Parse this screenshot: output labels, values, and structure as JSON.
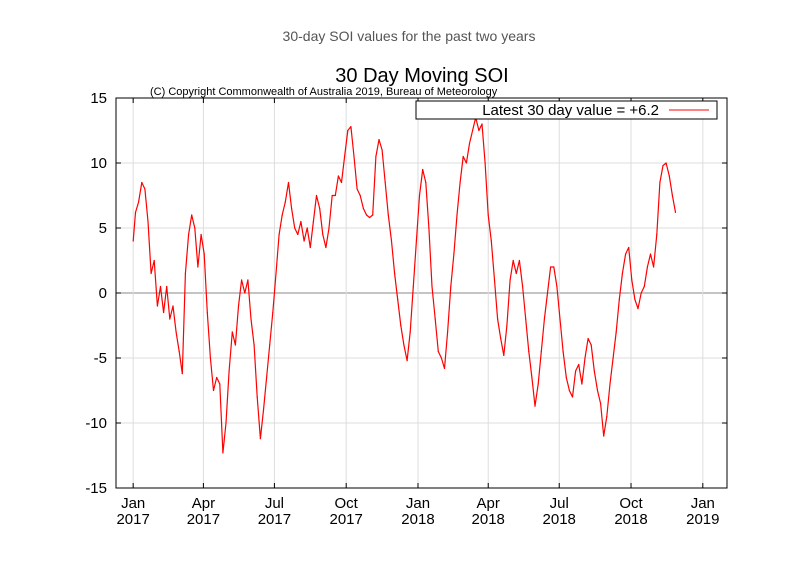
{
  "page": {
    "caption": "30-day SOI values for the past two years"
  },
  "chart_data": {
    "type": "line",
    "title": "30 Day Moving SOI",
    "subtitle": "(C) Copyright Commonwealth of Australia 2019, Bureau of Meteorology",
    "legend": {
      "label": "Latest 30 day value = +6.2",
      "placement": "top-right"
    },
    "xlabel": "",
    "ylabel": "",
    "ylim": [
      -15,
      15
    ],
    "yticks": [
      15,
      10,
      5,
      0,
      -5,
      -10,
      -15
    ],
    "xticks": [
      {
        "date": "2017-01-01",
        "month": "Jan",
        "year": "2017"
      },
      {
        "date": "2017-04-01",
        "month": "Apr",
        "year": "2017"
      },
      {
        "date": "2017-07-01",
        "month": "Jul",
        "year": "2017"
      },
      {
        "date": "2017-10-01",
        "month": "Oct",
        "year": "2017"
      },
      {
        "date": "2018-01-01",
        "month": "Jan",
        "year": "2018"
      },
      {
        "date": "2018-04-01",
        "month": "Apr",
        "year": "2018"
      },
      {
        "date": "2018-07-01",
        "month": "Jul",
        "year": "2018"
      },
      {
        "date": "2018-10-01",
        "month": "Oct",
        "year": "2018"
      },
      {
        "date": "2019-01-01",
        "month": "Jan",
        "year": "2019"
      }
    ],
    "xlim": [
      "2016-12-10",
      "2019-02-01"
    ],
    "grid": true,
    "zero_line": true,
    "series": [
      {
        "name": "Latest 30 day value = +6.2",
        "color": "#ff0000",
        "points": [
          [
            "2017-01-01",
            4.0
          ],
          [
            "2017-01-04",
            6.2
          ],
          [
            "2017-01-08",
            7.0
          ],
          [
            "2017-01-12",
            8.5
          ],
          [
            "2017-01-16",
            8.0
          ],
          [
            "2017-01-20",
            5.5
          ],
          [
            "2017-01-24",
            1.5
          ],
          [
            "2017-01-28",
            2.5
          ],
          [
            "2017-02-01",
            -1.0
          ],
          [
            "2017-02-05",
            0.5
          ],
          [
            "2017-02-09",
            -1.5
          ],
          [
            "2017-02-13",
            0.5
          ],
          [
            "2017-02-17",
            -2.0
          ],
          [
            "2017-02-21",
            -1.0
          ],
          [
            "2017-02-25",
            -3.0
          ],
          [
            "2017-03-01",
            -4.5
          ],
          [
            "2017-03-05",
            -6.2
          ],
          [
            "2017-03-09",
            1.5
          ],
          [
            "2017-03-13",
            4.5
          ],
          [
            "2017-03-17",
            6.0
          ],
          [
            "2017-03-21",
            5.0
          ],
          [
            "2017-03-25",
            2.0
          ],
          [
            "2017-03-29",
            4.5
          ],
          [
            "2017-04-02",
            3.0
          ],
          [
            "2017-04-06",
            -1.5
          ],
          [
            "2017-04-10",
            -5.0
          ],
          [
            "2017-04-14",
            -7.5
          ],
          [
            "2017-04-18",
            -6.5
          ],
          [
            "2017-04-22",
            -7.0
          ],
          [
            "2017-04-26",
            -12.3
          ],
          [
            "2017-04-30",
            -10.0
          ],
          [
            "2017-05-04",
            -6.0
          ],
          [
            "2017-05-08",
            -3.0
          ],
          [
            "2017-05-12",
            -4.0
          ],
          [
            "2017-05-16",
            -1.0
          ],
          [
            "2017-05-20",
            1.0
          ],
          [
            "2017-05-24",
            0.0
          ],
          [
            "2017-05-28",
            1.0
          ],
          [
            "2017-06-01",
            -2.0
          ],
          [
            "2017-06-05",
            -4.0
          ],
          [
            "2017-06-09",
            -8.0
          ],
          [
            "2017-06-13",
            -11.2
          ],
          [
            "2017-06-17",
            -9.0
          ],
          [
            "2017-06-21",
            -6.5
          ],
          [
            "2017-06-25",
            -4.0
          ],
          [
            "2017-06-29",
            -1.5
          ],
          [
            "2017-07-03",
            1.5
          ],
          [
            "2017-07-07",
            4.5
          ],
          [
            "2017-07-11",
            6.0
          ],
          [
            "2017-07-15",
            7.0
          ],
          [
            "2017-07-19",
            8.5
          ],
          [
            "2017-07-23",
            6.5
          ],
          [
            "2017-07-27",
            5.0
          ],
          [
            "2017-07-31",
            4.5
          ],
          [
            "2017-08-04",
            5.5
          ],
          [
            "2017-08-08",
            4.0
          ],
          [
            "2017-08-12",
            5.0
          ],
          [
            "2017-08-16",
            3.5
          ],
          [
            "2017-08-20",
            5.5
          ],
          [
            "2017-08-24",
            7.5
          ],
          [
            "2017-08-28",
            6.5
          ],
          [
            "2017-09-01",
            4.5
          ],
          [
            "2017-09-05",
            3.5
          ],
          [
            "2017-09-09",
            5.0
          ],
          [
            "2017-09-13",
            7.5
          ],
          [
            "2017-09-17",
            7.5
          ],
          [
            "2017-09-21",
            9.0
          ],
          [
            "2017-09-25",
            8.5
          ],
          [
            "2017-09-29",
            10.5
          ],
          [
            "2017-10-03",
            12.5
          ],
          [
            "2017-10-07",
            12.8
          ],
          [
            "2017-10-11",
            10.5
          ],
          [
            "2017-10-15",
            8.0
          ],
          [
            "2017-10-19",
            7.5
          ],
          [
            "2017-10-23",
            6.5
          ],
          [
            "2017-10-27",
            6.0
          ],
          [
            "2017-10-31",
            5.8
          ],
          [
            "2017-11-04",
            6.0
          ],
          [
            "2017-11-08",
            10.5
          ],
          [
            "2017-11-12",
            11.8
          ],
          [
            "2017-11-16",
            11.0
          ],
          [
            "2017-11-20",
            8.5
          ],
          [
            "2017-11-24",
            6.0
          ],
          [
            "2017-11-28",
            4.0
          ],
          [
            "2017-12-02",
            1.5
          ],
          [
            "2017-12-06",
            -0.5
          ],
          [
            "2017-12-10",
            -2.5
          ],
          [
            "2017-12-14",
            -4.0
          ],
          [
            "2017-12-18",
            -5.2
          ],
          [
            "2017-12-22",
            -3.0
          ],
          [
            "2017-12-26",
            0.5
          ],
          [
            "2017-12-30",
            4.0
          ],
          [
            "2018-01-03",
            7.5
          ],
          [
            "2018-01-07",
            9.5
          ],
          [
            "2018-01-11",
            8.5
          ],
          [
            "2018-01-15",
            5.0
          ],
          [
            "2018-01-19",
            0.5
          ],
          [
            "2018-01-23",
            -2.0
          ],
          [
            "2018-01-27",
            -4.5
          ],
          [
            "2018-01-31",
            -5.0
          ],
          [
            "2018-02-04",
            -5.8
          ],
          [
            "2018-02-08",
            -3.0
          ],
          [
            "2018-02-12",
            0.5
          ],
          [
            "2018-02-16",
            3.0
          ],
          [
            "2018-02-20",
            6.0
          ],
          [
            "2018-02-24",
            8.5
          ],
          [
            "2018-02-28",
            10.5
          ],
          [
            "2018-03-04",
            10.0
          ],
          [
            "2018-03-08",
            11.5
          ],
          [
            "2018-03-12",
            12.5
          ],
          [
            "2018-03-16",
            13.5
          ],
          [
            "2018-03-20",
            12.5
          ],
          [
            "2018-03-24",
            13.0
          ],
          [
            "2018-03-28",
            10.0
          ],
          [
            "2018-04-01",
            6.0
          ],
          [
            "2018-04-05",
            4.0
          ],
          [
            "2018-04-09",
            1.0
          ],
          [
            "2018-04-13",
            -2.0
          ],
          [
            "2018-04-17",
            -3.5
          ],
          [
            "2018-04-21",
            -4.8
          ],
          [
            "2018-04-25",
            -2.5
          ],
          [
            "2018-04-29",
            1.0
          ],
          [
            "2018-05-03",
            2.5
          ],
          [
            "2018-05-07",
            1.5
          ],
          [
            "2018-05-11",
            2.5
          ],
          [
            "2018-05-15",
            0.5
          ],
          [
            "2018-05-19",
            -2.0
          ],
          [
            "2018-05-23",
            -4.5
          ],
          [
            "2018-05-27",
            -6.5
          ],
          [
            "2018-05-31",
            -8.7
          ],
          [
            "2018-06-04",
            -7.0
          ],
          [
            "2018-06-08",
            -4.5
          ],
          [
            "2018-06-12",
            -2.0
          ],
          [
            "2018-06-16",
            0.0
          ],
          [
            "2018-06-20",
            2.0
          ],
          [
            "2018-06-24",
            2.0
          ],
          [
            "2018-06-28",
            0.5
          ],
          [
            "2018-07-02",
            -2.0
          ],
          [
            "2018-07-06",
            -4.5
          ],
          [
            "2018-07-10",
            -6.5
          ],
          [
            "2018-07-14",
            -7.5
          ],
          [
            "2018-07-18",
            -8.0
          ],
          [
            "2018-07-22",
            -6.0
          ],
          [
            "2018-07-26",
            -5.5
          ],
          [
            "2018-07-30",
            -7.0
          ],
          [
            "2018-08-03",
            -5.0
          ],
          [
            "2018-08-07",
            -3.5
          ],
          [
            "2018-08-11",
            -4.0
          ],
          [
            "2018-08-15",
            -6.0
          ],
          [
            "2018-08-19",
            -7.5
          ],
          [
            "2018-08-23",
            -8.5
          ],
          [
            "2018-08-27",
            -11.0
          ],
          [
            "2018-08-31",
            -9.5
          ],
          [
            "2018-09-04",
            -7.0
          ],
          [
            "2018-09-08",
            -5.0
          ],
          [
            "2018-09-12",
            -3.0
          ],
          [
            "2018-09-16",
            -0.5
          ],
          [
            "2018-09-20",
            1.5
          ],
          [
            "2018-09-24",
            3.0
          ],
          [
            "2018-09-28",
            3.5
          ],
          [
            "2018-10-02",
            1.0
          ],
          [
            "2018-10-06",
            -0.5
          ],
          [
            "2018-10-10",
            -1.2
          ],
          [
            "2018-10-14",
            0.0
          ],
          [
            "2018-10-18",
            0.5
          ],
          [
            "2018-10-22",
            2.0
          ],
          [
            "2018-10-26",
            3.0
          ],
          [
            "2018-10-30",
            2.0
          ],
          [
            "2018-11-03",
            4.5
          ],
          [
            "2018-11-07",
            8.5
          ],
          [
            "2018-11-11",
            9.8
          ],
          [
            "2018-11-15",
            10.0
          ],
          [
            "2018-11-19",
            9.0
          ],
          [
            "2018-11-23",
            7.5
          ],
          [
            "2018-11-27",
            6.2
          ]
        ]
      }
    ]
  }
}
